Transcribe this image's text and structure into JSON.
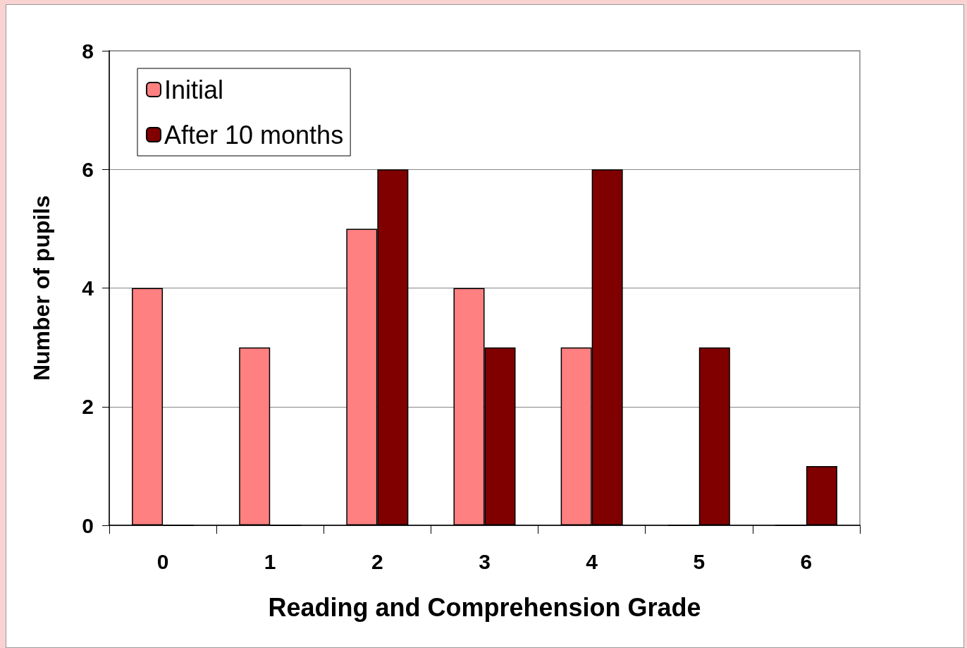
{
  "chart_data": {
    "type": "bar",
    "xlabel": "Reading and Comprehension Grade",
    "ylabel": "Number of pupils",
    "categories": [
      "0",
      "1",
      "2",
      "3",
      "4",
      "5",
      "6"
    ],
    "series": [
      {
        "name": "Initial",
        "color": "#ff8080",
        "values": [
          4,
          3,
          5,
          4,
          3,
          0,
          0
        ]
      },
      {
        "name": "After 10 months",
        "color": "#800000",
        "values": [
          0,
          0,
          6,
          3,
          6,
          3,
          1
        ]
      }
    ],
    "ylim": [
      0,
      8
    ],
    "yticks": [
      0,
      2,
      4,
      6,
      8
    ],
    "grid": "y",
    "legend": "top left"
  }
}
